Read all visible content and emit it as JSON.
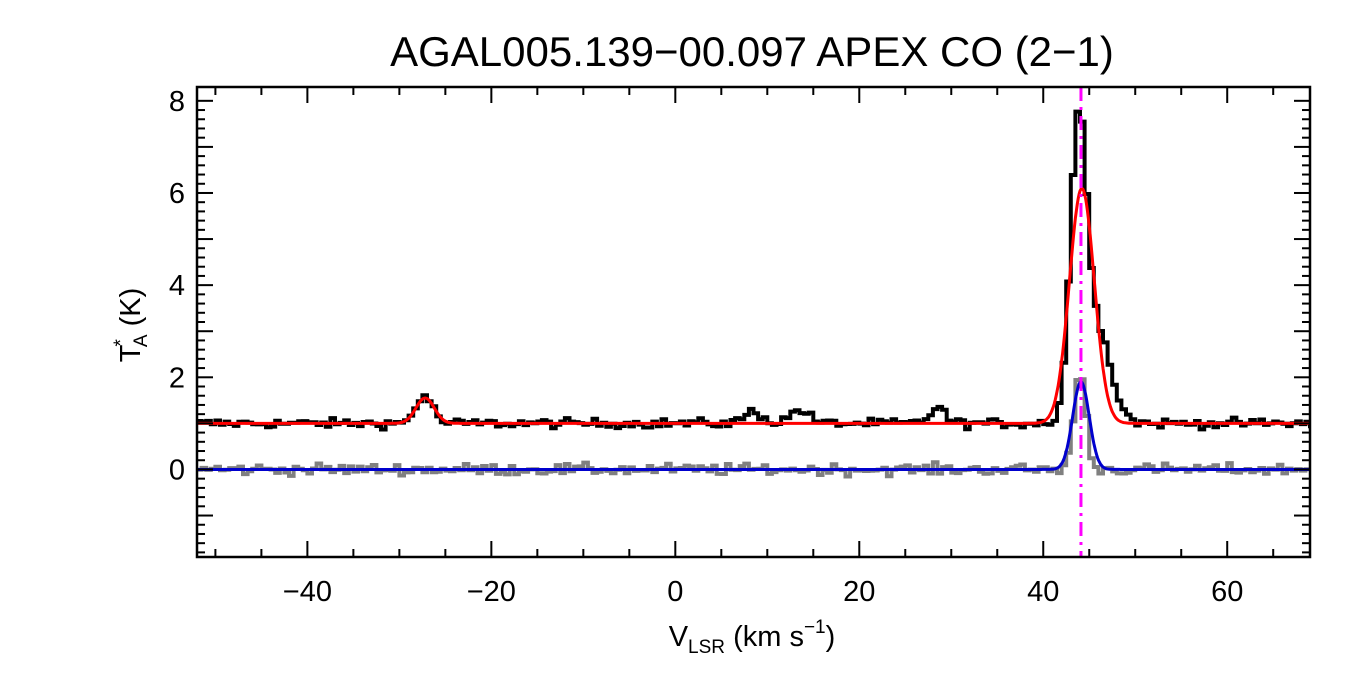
{
  "chart_data": {
    "type": "line",
    "title": "AGAL005.139−00.097  APEX CO (2−1)",
    "xlabel": {
      "main": "V",
      "sub": "LSR",
      "rest": " (km s",
      "sup": "−1",
      "end": ")"
    },
    "ylabel": {
      "main": "T",
      "sup": "*",
      "sub": "A",
      "rest": " (K)"
    },
    "xlim": [
      -52,
      69
    ],
    "ylim": [
      -1.9,
      8.3
    ],
    "xticks": [
      -40,
      -20,
      0,
      20,
      40,
      60
    ],
    "xtick_labels": [
      "−40",
      "−20",
      "0",
      "20",
      "40",
      "60"
    ],
    "yticks": [
      0,
      2,
      4,
      6,
      8
    ],
    "ytick_labels": [
      "0",
      "2",
      "4",
      "6",
      "8"
    ],
    "ymajor_unlabeled": [
      -1,
      1,
      3,
      5,
      7
    ],
    "vline": {
      "x": 44.1,
      "color": "#ff00ff",
      "style": "dash-dot"
    },
    "series": [
      {
        "id": "upper-spectrum",
        "kind": "histogram",
        "color": "#000000",
        "offset": 1.0,
        "noise": 0.1,
        "components": [
          {
            "center": -27.3,
            "amplitude": 0.6,
            "sigma": 0.9
          },
          {
            "center": 8.5,
            "amplitude": 0.25,
            "sigma": 1.0
          },
          {
            "center": 13.5,
            "amplitude": 0.3,
            "sigma": 1.0
          },
          {
            "center": 28.5,
            "amplitude": 0.35,
            "sigma": 0.8
          },
          {
            "center": 43.8,
            "amplitude": 5.7,
            "sigma": 0.85
          },
          {
            "center": 45.6,
            "amplitude": 2.2,
            "sigma": 1.6
          }
        ]
      },
      {
        "id": "upper-fit",
        "kind": "line",
        "color": "#ff0000",
        "offset": 1.0,
        "components": [
          {
            "center": -27.2,
            "amplitude": 0.55,
            "sigma": 1.0
          },
          {
            "center": 44.2,
            "amplitude": 5.1,
            "sigma": 1.35
          }
        ]
      },
      {
        "id": "lower-spectrum",
        "kind": "histogram",
        "color": "#808080",
        "offset": 0.0,
        "noise": 0.12,
        "components": [
          {
            "center": 44.0,
            "amplitude": 2.1,
            "sigma": 0.65
          }
        ]
      },
      {
        "id": "lower-fit",
        "kind": "line",
        "color": "#0000cd",
        "offset": 0.0,
        "components": [
          {
            "center": 44.1,
            "amplitude": 1.9,
            "sigma": 0.9
          }
        ]
      }
    ],
    "channel_width": 0.5,
    "grid": false,
    "legend": "none"
  }
}
